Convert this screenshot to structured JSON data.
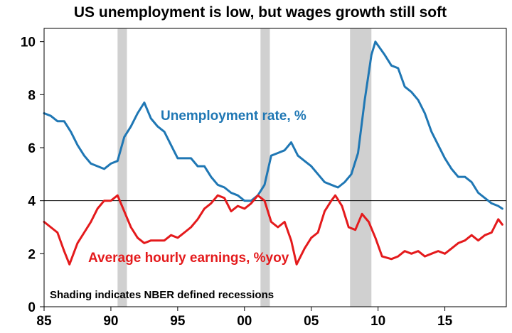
{
  "chart_data": {
    "type": "line",
    "title": "US unemployment is low, but wages growth still soft",
    "xlabel": "",
    "ylabel": "",
    "x_range": [
      1985,
      2019.6
    ],
    "ylim": [
      0,
      10.5
    ],
    "x_tick_labels": [
      "85",
      "90",
      "95",
      "00",
      "05",
      "10",
      "15"
    ],
    "x_tick_values": [
      1985,
      1990,
      1995,
      2000,
      2005,
      2010,
      2015
    ],
    "y_ticks": [
      0,
      2,
      4,
      6,
      8,
      10
    ],
    "grid": false,
    "reference_line": {
      "y": 4,
      "color": "#000000"
    },
    "recessions": [
      {
        "start": 1990.5,
        "end": 1991.2
      },
      {
        "start": 2001.2,
        "end": 2001.9
      },
      {
        "start": 2007.9,
        "end": 2009.5
      }
    ],
    "recession_color": "#d0d0d0",
    "note": "Shading indicates NBER defined recessions",
    "series": [
      {
        "name": "Unemployment  rate, %",
        "color": "#1f77b4",
        "points": [
          [
            1985.0,
            7.3
          ],
          [
            1985.5,
            7.2
          ],
          [
            1986.0,
            7.0
          ],
          [
            1986.5,
            7.0
          ],
          [
            1987.0,
            6.6
          ],
          [
            1987.5,
            6.1
          ],
          [
            1988.0,
            5.7
          ],
          [
            1988.5,
            5.4
          ],
          [
            1989.0,
            5.3
          ],
          [
            1989.5,
            5.2
          ],
          [
            1990.0,
            5.4
          ],
          [
            1990.5,
            5.5
          ],
          [
            1991.0,
            6.4
          ],
          [
            1991.5,
            6.8
          ],
          [
            1992.0,
            7.3
          ],
          [
            1992.5,
            7.7
          ],
          [
            1993.0,
            7.1
          ],
          [
            1993.5,
            6.8
          ],
          [
            1994.0,
            6.6
          ],
          [
            1994.5,
            6.1
          ],
          [
            1995.0,
            5.6
          ],
          [
            1995.5,
            5.6
          ],
          [
            1996.0,
            5.6
          ],
          [
            1996.5,
            5.3
          ],
          [
            1997.0,
            5.3
          ],
          [
            1997.5,
            4.9
          ],
          [
            1998.0,
            4.6
          ],
          [
            1998.5,
            4.5
          ],
          [
            1999.0,
            4.3
          ],
          [
            1999.5,
            4.2
          ],
          [
            2000.0,
            4.0
          ],
          [
            2000.5,
            4.0
          ],
          [
            2001.0,
            4.2
          ],
          [
            2001.5,
            4.6
          ],
          [
            2002.0,
            5.7
          ],
          [
            2002.5,
            5.8
          ],
          [
            2003.0,
            5.9
          ],
          [
            2003.5,
            6.2
          ],
          [
            2004.0,
            5.7
          ],
          [
            2004.5,
            5.5
          ],
          [
            2005.0,
            5.3
          ],
          [
            2005.5,
            5.0
          ],
          [
            2006.0,
            4.7
          ],
          [
            2006.5,
            4.6
          ],
          [
            2007.0,
            4.5
          ],
          [
            2007.5,
            4.7
          ],
          [
            2008.0,
            5.0
          ],
          [
            2008.5,
            5.8
          ],
          [
            2009.0,
            7.8
          ],
          [
            2009.5,
            9.5
          ],
          [
            2009.8,
            10.0
          ],
          [
            2010.5,
            9.5
          ],
          [
            2011.0,
            9.1
          ],
          [
            2011.5,
            9.0
          ],
          [
            2012.0,
            8.3
          ],
          [
            2012.5,
            8.1
          ],
          [
            2013.0,
            7.8
          ],
          [
            2013.5,
            7.3
          ],
          [
            2014.0,
            6.6
          ],
          [
            2014.5,
            6.1
          ],
          [
            2015.0,
            5.6
          ],
          [
            2015.5,
            5.2
          ],
          [
            2016.0,
            4.9
          ],
          [
            2016.5,
            4.9
          ],
          [
            2017.0,
            4.7
          ],
          [
            2017.5,
            4.3
          ],
          [
            2018.0,
            4.1
          ],
          [
            2018.5,
            3.9
          ],
          [
            2019.0,
            3.8
          ],
          [
            2019.3,
            3.7
          ]
        ]
      },
      {
        "name": "Average hourly earnings, %yoy",
        "color": "#e41a1c",
        "points": [
          [
            1985.0,
            3.2
          ],
          [
            1985.5,
            3.0
          ],
          [
            1986.0,
            2.8
          ],
          [
            1986.5,
            2.1
          ],
          [
            1986.9,
            1.6
          ],
          [
            1987.5,
            2.4
          ],
          [
            1988.0,
            2.8
          ],
          [
            1988.5,
            3.2
          ],
          [
            1989.0,
            3.7
          ],
          [
            1989.5,
            4.0
          ],
          [
            1990.0,
            4.0
          ],
          [
            1990.5,
            4.2
          ],
          [
            1991.0,
            3.6
          ],
          [
            1991.5,
            3.0
          ],
          [
            1992.0,
            2.6
          ],
          [
            1992.5,
            2.4
          ],
          [
            1993.0,
            2.5
          ],
          [
            1993.5,
            2.5
          ],
          [
            1994.0,
            2.5
          ],
          [
            1994.5,
            2.7
          ],
          [
            1995.0,
            2.6
          ],
          [
            1995.5,
            2.8
          ],
          [
            1996.0,
            3.0
          ],
          [
            1996.5,
            3.3
          ],
          [
            1997.0,
            3.7
          ],
          [
            1997.5,
            3.9
          ],
          [
            1998.0,
            4.2
          ],
          [
            1998.5,
            4.1
          ],
          [
            1999.0,
            3.6
          ],
          [
            1999.5,
            3.8
          ],
          [
            2000.0,
            3.7
          ],
          [
            2000.5,
            3.9
          ],
          [
            2001.0,
            4.2
          ],
          [
            2001.5,
            4.0
          ],
          [
            2002.0,
            3.2
          ],
          [
            2002.5,
            3.0
          ],
          [
            2003.0,
            3.2
          ],
          [
            2003.5,
            2.5
          ],
          [
            2003.9,
            1.6
          ],
          [
            2004.5,
            2.2
          ],
          [
            2005.0,
            2.6
          ],
          [
            2005.5,
            2.8
          ],
          [
            2006.0,
            3.6
          ],
          [
            2006.5,
            4.0
          ],
          [
            2006.8,
            4.2
          ],
          [
            2007.3,
            3.8
          ],
          [
            2007.8,
            3.0
          ],
          [
            2008.3,
            2.9
          ],
          [
            2008.8,
            3.5
          ],
          [
            2009.3,
            3.2
          ],
          [
            2009.8,
            2.6
          ],
          [
            2010.3,
            1.9
          ],
          [
            2011.0,
            1.8
          ],
          [
            2011.5,
            1.9
          ],
          [
            2012.0,
            2.1
          ],
          [
            2012.5,
            2.0
          ],
          [
            2013.0,
            2.1
          ],
          [
            2013.5,
            1.9
          ],
          [
            2014.0,
            2.0
          ],
          [
            2014.5,
            2.1
          ],
          [
            2015.0,
            2.0
          ],
          [
            2015.5,
            2.2
          ],
          [
            2016.0,
            2.4
          ],
          [
            2016.5,
            2.5
          ],
          [
            2017.0,
            2.7
          ],
          [
            2017.5,
            2.5
          ],
          [
            2018.0,
            2.7
          ],
          [
            2018.5,
            2.8
          ],
          [
            2019.0,
            3.3
          ],
          [
            2019.3,
            3.1
          ]
        ]
      }
    ]
  }
}
